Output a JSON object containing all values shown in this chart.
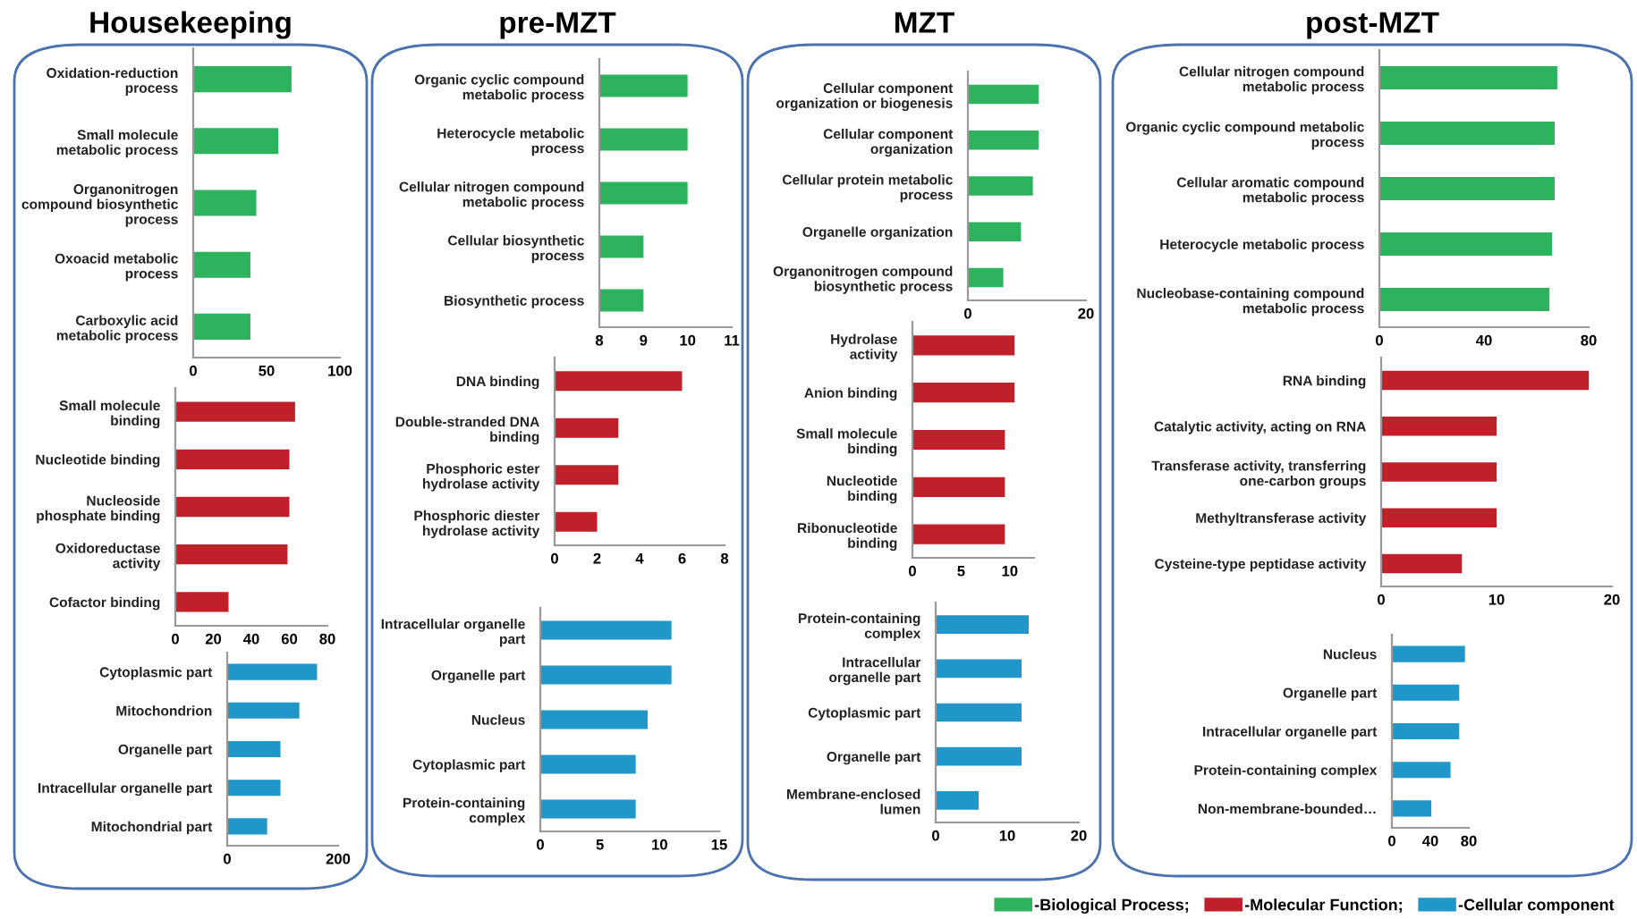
{
  "chart_data": [
    {
      "type": "bar",
      "orientation": "horizontal",
      "title": "Housekeeping",
      "categories": [
        "Oxidation-reduction process",
        "Small molecule metabolic process",
        "Organonitrogen compound biosynthetic process",
        "Oxoacid metabolic process",
        "Carboxylic acid metabolic process"
      ],
      "series": [
        {
          "name": "-Biological Process;",
          "color": "#2db35d",
          "values": [
            67,
            58,
            43,
            39,
            39
          ]
        }
      ],
      "xlim": [
        0,
        100
      ],
      "xticks": [
        0,
        50,
        100
      ],
      "legend": "bottom right"
    },
    {
      "type": "bar",
      "orientation": "horizontal",
      "categories": [
        "Small molecule binding",
        "Nucleotide binding",
        "Nucleoside phosphate binding",
        "Oxidoreductase activity",
        "Cofactor binding"
      ],
      "series": [
        {
          "name": "-Molecular Function;",
          "color": "#c0202a",
          "values": [
            63,
            60,
            60,
            59,
            28
          ]
        }
      ],
      "xlim": [
        0,
        80
      ],
      "xticks": [
        0,
        20,
        40,
        60,
        80
      ],
      "legend": "bottom right"
    },
    {
      "type": "bar",
      "orientation": "horizontal",
      "categories": [
        "Cytoplasmic part",
        "Mitochondrion",
        "Organelle part",
        "Intracellular organelle part",
        "Mitochondrial part"
      ],
      "series": [
        {
          "name": "-Cellular component",
          "color": "#2196c9",
          "values": [
            162,
            130,
            96,
            96,
            72
          ]
        }
      ],
      "xlim": [
        0,
        200
      ],
      "xticks": [
        0,
        200
      ],
      "legend": "bottom right"
    },
    {
      "type": "bar",
      "orientation": "horizontal",
      "title": "pre-MZT",
      "categories": [
        "Organic cyclic compound metabolic process",
        "Heterocycle metabolic process",
        "Cellular nitrogen compound metabolic process",
        "Cellular biosynthetic process",
        "Biosynthetic process"
      ],
      "series": [
        {
          "name": "-Biological Process;",
          "color": "#2db35d",
          "values": [
            10,
            10,
            10,
            9,
            9
          ]
        }
      ],
      "xlim": [
        8,
        11
      ],
      "xticks": [
        8,
        9,
        10,
        11
      ],
      "legend": "bottom right"
    },
    {
      "type": "bar",
      "orientation": "horizontal",
      "categories": [
        "DNA binding",
        "Double-stranded DNA binding",
        "Phosphoric ester hydrolase activity",
        "Phosphoric diester hydrolase activity"
      ],
      "series": [
        {
          "name": "-Molecular Function;",
          "color": "#c0202a",
          "values": [
            6,
            3,
            3,
            2
          ]
        }
      ],
      "xlim": [
        0,
        8
      ],
      "xticks": [
        0,
        2,
        4,
        6,
        8
      ],
      "legend": "bottom right"
    },
    {
      "type": "bar",
      "orientation": "horizontal",
      "categories": [
        "Intracellular organelle part",
        "Organelle part",
        "Nucleus",
        "Cytoplasmic part",
        "Protein-containing complex"
      ],
      "series": [
        {
          "name": "-Cellular component",
          "color": "#2196c9",
          "values": [
            11,
            11,
            9,
            8,
            8
          ]
        }
      ],
      "xlim": [
        0,
        15
      ],
      "xticks": [
        0,
        5,
        10,
        15
      ],
      "legend": "bottom right"
    },
    {
      "type": "bar",
      "orientation": "horizontal",
      "title": "MZT",
      "categories": [
        "Cellular component organization or biogenesis",
        "Cellular component organization",
        "Cellular protein metabolic process",
        "Organelle organization",
        "Organonitrogen compound biosynthetic process"
      ],
      "series": [
        {
          "name": "-Biological Process;",
          "color": "#2db35d",
          "values": [
            12,
            12,
            11,
            9,
            6
          ]
        }
      ],
      "xlim": [
        0,
        20
      ],
      "xticks": [
        0,
        20
      ],
      "legend": "bottom right"
    },
    {
      "type": "bar",
      "orientation": "horizontal",
      "categories": [
        "Hydrolase activity",
        "Anion binding",
        "Small molecule binding",
        "Nucleotide binding",
        "Ribonucleotide binding"
      ],
      "series": [
        {
          "name": "-Molecular Function;",
          "color": "#c0202a",
          "values": [
            10.5,
            10.5,
            9.5,
            9.5,
            9.5
          ]
        }
      ],
      "xlim": [
        0,
        12.5
      ],
      "xticks": [
        0,
        5,
        10
      ],
      "legend": "bottom right"
    },
    {
      "type": "bar",
      "orientation": "horizontal",
      "categories": [
        "Protein-containing complex",
        "Intracellular organelle part",
        "Cytoplasmic part",
        "Organelle part",
        "Membrane-enclosed lumen"
      ],
      "series": [
        {
          "name": "-Cellular component",
          "color": "#2196c9",
          "values": [
            13,
            12,
            12,
            12,
            6
          ]
        }
      ],
      "xlim": [
        0,
        20
      ],
      "xticks": [
        0,
        10,
        20
      ],
      "legend": "bottom right"
    },
    {
      "type": "bar",
      "orientation": "horizontal",
      "title": "post-MZT",
      "categories": [
        "Cellular nitrogen compound metabolic process",
        "Organic cyclic compound metabolic process",
        "Cellular aromatic compound metabolic process",
        "Heterocycle metabolic process",
        "Nucleobase-containing compound metabolic process"
      ],
      "series": [
        {
          "name": "-Biological Process;",
          "color": "#2db35d",
          "values": [
            68,
            67,
            67,
            66,
            65
          ]
        }
      ],
      "xlim": [
        0,
        80
      ],
      "xticks": [
        0,
        40,
        80
      ],
      "legend": "bottom right"
    },
    {
      "type": "bar",
      "orientation": "horizontal",
      "categories": [
        "RNA binding",
        "Catalytic activity, acting on RNA",
        "Transferase activity, transferring one-carbon groups",
        "Methyltransferase activity",
        "Cysteine-type peptidase activity"
      ],
      "series": [
        {
          "name": "-Molecular Function;",
          "color": "#c0202a",
          "values": [
            18,
            10,
            10,
            10,
            7
          ]
        }
      ],
      "xlim": [
        0,
        20
      ],
      "xticks": [
        0,
        10,
        20
      ],
      "legend": "bottom right"
    },
    {
      "type": "bar",
      "orientation": "horizontal",
      "categories": [
        "Nucleus",
        "Organelle part",
        "Intracellular organelle part",
        "Protein-containing complex",
        "Non-membrane-bounded…"
      ],
      "series": [
        {
          "name": "-Cellular component",
          "color": "#2196c9",
          "values": [
            76,
            70,
            70,
            61,
            41
          ]
        }
      ],
      "xlim": [
        0,
        80
      ],
      "xticks": [
        0,
        40,
        80
      ],
      "legend": "bottom right"
    }
  ]
}
